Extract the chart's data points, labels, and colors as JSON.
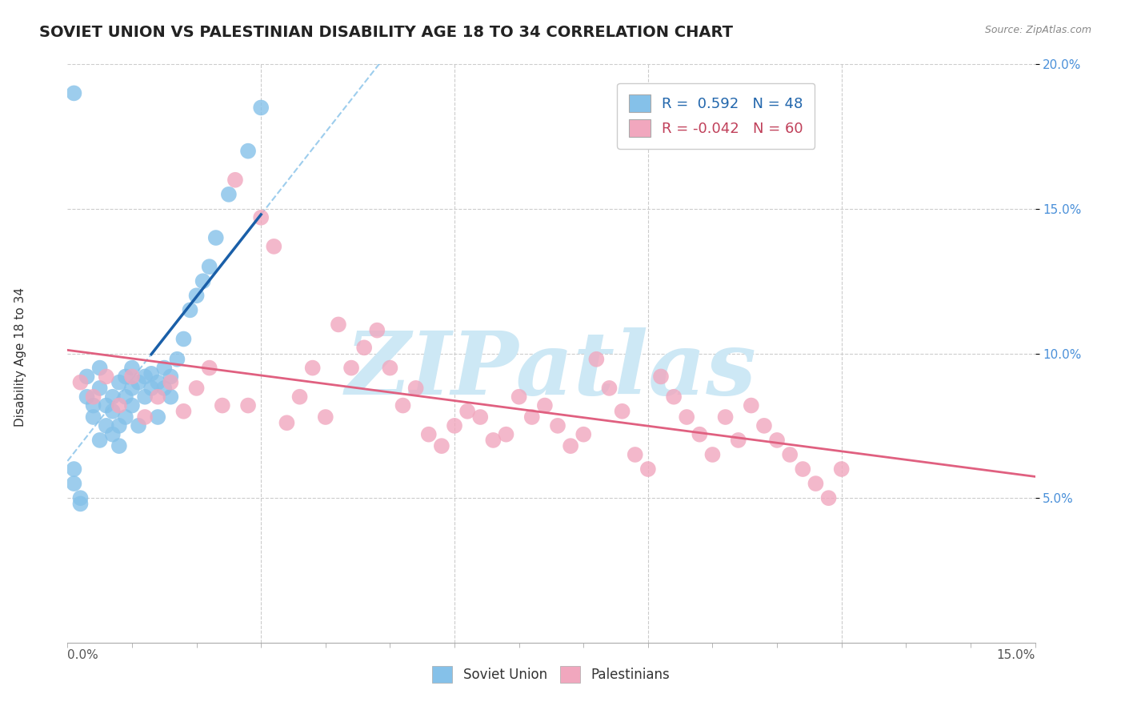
{
  "title": "SOVIET UNION VS PALESTINIAN DISABILITY AGE 18 TO 34 CORRELATION CHART",
  "source_text": "Source: ZipAtlas.com",
  "ylabel": "Disability Age 18 to 34",
  "xmin": 0.0,
  "xmax": 0.15,
  "ymin": 0.0,
  "ymax": 0.2,
  "ytick_positions": [
    0.05,
    0.1,
    0.15,
    0.2
  ],
  "ytick_labels": [
    "5.0%",
    "10.0%",
    "15.0%",
    "20.0%"
  ],
  "soviet_color": "#85c1e9",
  "soviet_line_color": "#1a5fa8",
  "soviet_dash_color": "#85c1e9",
  "palestinian_color": "#f1a7be",
  "palestinian_line_color": "#e06080",
  "soviet_R": 0.592,
  "soviet_N": 48,
  "palestinian_R": -0.042,
  "palestinian_N": 60,
  "background_color": "#ffffff",
  "grid_color": "#cccccc",
  "watermark_text": "ZIPatlas",
  "watermark_color": "#cde8f5",
  "title_fontsize": 14,
  "axis_label_fontsize": 11,
  "tick_fontsize": 11,
  "legend_fontsize": 13,
  "soviet_scatter_x": [
    0.001,
    0.001,
    0.002,
    0.002,
    0.003,
    0.003,
    0.004,
    0.004,
    0.005,
    0.005,
    0.005,
    0.006,
    0.006,
    0.007,
    0.007,
    0.007,
    0.008,
    0.008,
    0.008,
    0.009,
    0.009,
    0.009,
    0.01,
    0.01,
    0.01,
    0.011,
    0.011,
    0.012,
    0.012,
    0.013,
    0.013,
    0.014,
    0.014,
    0.015,
    0.015,
    0.016,
    0.016,
    0.017,
    0.018,
    0.019,
    0.02,
    0.021,
    0.022,
    0.023,
    0.025,
    0.028,
    0.03,
    0.001
  ],
  "soviet_scatter_y": [
    0.055,
    0.06,
    0.05,
    0.048,
    0.085,
    0.092,
    0.078,
    0.082,
    0.088,
    0.07,
    0.095,
    0.075,
    0.082,
    0.08,
    0.085,
    0.072,
    0.09,
    0.075,
    0.068,
    0.085,
    0.092,
    0.078,
    0.095,
    0.088,
    0.082,
    0.09,
    0.075,
    0.092,
    0.085,
    0.088,
    0.093,
    0.09,
    0.078,
    0.095,
    0.088,
    0.092,
    0.085,
    0.098,
    0.105,
    0.115,
    0.12,
    0.125,
    0.13,
    0.14,
    0.155,
    0.17,
    0.185,
    0.19
  ],
  "palestinian_scatter_x": [
    0.002,
    0.004,
    0.006,
    0.008,
    0.01,
    0.012,
    0.014,
    0.016,
    0.018,
    0.02,
    0.022,
    0.024,
    0.026,
    0.028,
    0.03,
    0.032,
    0.034,
    0.036,
    0.038,
    0.04,
    0.042,
    0.044,
    0.046,
    0.048,
    0.05,
    0.052,
    0.054,
    0.056,
    0.058,
    0.06,
    0.062,
    0.064,
    0.066,
    0.068,
    0.07,
    0.072,
    0.074,
    0.076,
    0.078,
    0.08,
    0.082,
    0.084,
    0.086,
    0.088,
    0.09,
    0.092,
    0.094,
    0.096,
    0.098,
    0.1,
    0.102,
    0.104,
    0.106,
    0.108,
    0.11,
    0.112,
    0.114,
    0.116,
    0.118,
    0.12
  ],
  "palestinian_scatter_y": [
    0.09,
    0.085,
    0.092,
    0.082,
    0.092,
    0.078,
    0.085,
    0.09,
    0.08,
    0.088,
    0.095,
    0.082,
    0.16,
    0.082,
    0.147,
    0.137,
    0.076,
    0.085,
    0.095,
    0.078,
    0.11,
    0.095,
    0.102,
    0.108,
    0.095,
    0.082,
    0.088,
    0.072,
    0.068,
    0.075,
    0.08,
    0.078,
    0.07,
    0.072,
    0.085,
    0.078,
    0.082,
    0.075,
    0.068,
    0.072,
    0.098,
    0.088,
    0.08,
    0.065,
    0.06,
    0.092,
    0.085,
    0.078,
    0.072,
    0.065,
    0.078,
    0.07,
    0.082,
    0.075,
    0.07,
    0.065,
    0.06,
    0.055,
    0.05,
    0.06
  ]
}
